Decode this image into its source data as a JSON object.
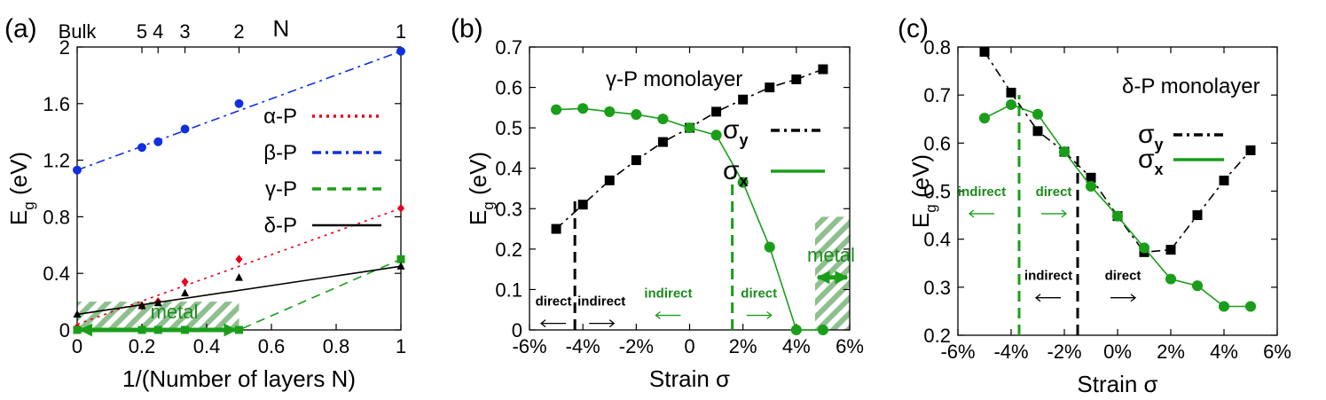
{
  "colors": {
    "alpha": "#e8001c",
    "beta": "#1030e0",
    "gamma": "#1a9e1a",
    "delta": "#000000",
    "metal_hatch": "#2e8b2e"
  },
  "chart_data": [
    {
      "panel": "(a)",
      "type": "scatter",
      "xlabel": "1/(Number of layers N)",
      "ylabel": "E",
      "ylabel_sub": "g",
      "ylabel_unit": " (eV)",
      "top_axis_label": "N",
      "xlim": [
        0,
        1
      ],
      "ylim": [
        0,
        2
      ],
      "x_ticks": [
        0,
        0.2,
        0.4,
        0.6,
        0.8,
        1
      ],
      "x_tick_labels": [
        "0",
        "0.2",
        "0.4",
        "0.6",
        "0.8",
        "1"
      ],
      "y_ticks": [
        0,
        0.4,
        0.8,
        1.2,
        1.6,
        2
      ],
      "y_tick_labels": [
        "0",
        "0.4",
        "0.8",
        "1.2",
        "1.6",
        "2"
      ],
      "top_ticks": [
        0,
        0.2,
        0.25,
        0.333,
        0.5,
        1
      ],
      "top_tick_labels": [
        "Bulk",
        "5",
        "4",
        "3",
        "2",
        "1"
      ],
      "legend_placement": "right",
      "grid": false,
      "series": [
        {
          "name": "α-P",
          "key": "alpha",
          "marker": "diamond",
          "line": "dotted",
          "x": [
            0,
            0.2,
            0.25,
            0.333,
            0.5,
            1
          ],
          "y": [
            0.02,
            0.17,
            0.2,
            0.34,
            0.5,
            0.86
          ],
          "fit": [
            [
              0,
              0.04
            ],
            [
              1,
              0.86
            ]
          ]
        },
        {
          "name": "β-P",
          "key": "beta",
          "marker": "circle",
          "line": "dashdot",
          "x": [
            0,
            0.2,
            0.25,
            0.333,
            0.5,
            1
          ],
          "y": [
            1.13,
            1.29,
            1.33,
            1.42,
            1.6,
            1.97
          ],
          "fit": [
            [
              0,
              1.13
            ],
            [
              1,
              1.97
            ]
          ]
        },
        {
          "name": "γ-P",
          "key": "gamma",
          "marker": "square",
          "line": "dashed",
          "x": [
            0,
            0.2,
            0.25,
            0.333,
            0.5,
            1
          ],
          "y": [
            0,
            0,
            0,
            0,
            0,
            0.5
          ],
          "fit": [
            [
              0,
              0
            ],
            [
              0.5,
              0
            ],
            [
              1,
              0.5
            ]
          ]
        },
        {
          "name": "δ-P",
          "key": "delta",
          "marker": "triangle",
          "line": "solid",
          "x": [
            0,
            0.2,
            0.25,
            0.333,
            0.5,
            1
          ],
          "y": [
            0.11,
            0.17,
            0.19,
            0.26,
            0.37,
            0.45
          ],
          "fit": [
            [
              0,
              0.11
            ],
            [
              1,
              0.45
            ]
          ]
        }
      ],
      "regions": [
        {
          "label": "metal",
          "x": [
            0,
            0.5
          ],
          "y": [
            0,
            0.2
          ]
        }
      ]
    },
    {
      "panel": "(b)",
      "type": "line",
      "title": "γ-P monolayer",
      "xlabel": "Strain σ",
      "ylabel": "E",
      "ylabel_sub": "g",
      "ylabel_unit": " (eV)",
      "xlim": [
        -6,
        6
      ],
      "ylim": [
        0,
        0.7
      ],
      "x_ticks": [
        -6,
        -4,
        -2,
        0,
        2,
        4,
        6
      ],
      "x_tick_labels": [
        "-6%",
        "-4%",
        "-2%",
        "0",
        "2%",
        "4%",
        "6%"
      ],
      "y_ticks": [
        0,
        0.1,
        0.2,
        0.3,
        0.4,
        0.5,
        0.6,
        0.7
      ],
      "y_tick_labels": [
        "0",
        "0.1",
        "0.2",
        "0.3",
        "0.4",
        "0.5",
        "0.6",
        "0.7"
      ],
      "legend_placement": "right",
      "grid": false,
      "series": [
        {
          "name": "σ",
          "sub": "y",
          "key": "delta",
          "marker": "square",
          "line": "dashdot",
          "x": [
            -5,
            -4,
            -3,
            -2,
            -1,
            0,
            1,
            2,
            3,
            4,
            5
          ],
          "y": [
            0.25,
            0.31,
            0.37,
            0.42,
            0.465,
            0.5,
            0.54,
            0.57,
            0.6,
            0.62,
            0.645
          ]
        },
        {
          "name": "σ",
          "sub": "x",
          "key": "gamma",
          "marker": "circle",
          "line": "solid",
          "x": [
            -5,
            -4,
            -3,
            -2,
            -1,
            0,
            1,
            2,
            3,
            4,
            5
          ],
          "y": [
            0.545,
            0.548,
            0.54,
            0.533,
            0.522,
            0.5,
            0.482,
            0.365,
            0.205,
            0,
            0
          ]
        }
      ],
      "vlines": [
        {
          "x": -4.3,
          "y": [
            0,
            0.33
          ],
          "key": "delta"
        },
        {
          "x": 1.6,
          "y": [
            0,
            0.38
          ],
          "key": "gamma"
        }
      ],
      "annotations": [
        {
          "text": "direct",
          "color": "black",
          "x": -5.1,
          "y": 0.06
        },
        {
          "text": "indirect",
          "color": "black",
          "x": -3.3,
          "y": 0.06
        },
        {
          "text": "indirect",
          "color": "green",
          "x": -0.8,
          "y": 0.08
        },
        {
          "text": "direct",
          "color": "green",
          "x": 2.6,
          "y": 0.08
        },
        {
          "text": "metal",
          "color": "green",
          "x": 5.3,
          "y": 0.13,
          "big": true
        }
      ],
      "regions": [
        {
          "label": "metal",
          "x": [
            4.7,
            6
          ],
          "y": [
            0,
            0.28
          ]
        }
      ]
    },
    {
      "panel": "(c)",
      "type": "line",
      "title": "δ-P monolayer",
      "xlabel": "Strain σ",
      "ylabel": "E",
      "ylabel_sub": "g",
      "ylabel_unit": " (eV)",
      "xlim": [
        -6,
        6
      ],
      "ylim": [
        0.2,
        0.8
      ],
      "x_ticks": [
        -6,
        -4,
        -2,
        0,
        2,
        4,
        6
      ],
      "x_tick_labels": [
        "-6%",
        "-4%",
        "-2%",
        "0%",
        "2%",
        "4%",
        "6%"
      ],
      "y_ticks": [
        0.2,
        0.3,
        0.4,
        0.5,
        0.6,
        0.7,
        0.8
      ],
      "y_tick_labels": [
        "0.2",
        "0.3",
        "0.4",
        "0.5",
        "0.6",
        "0.7",
        "0.8"
      ],
      "legend_placement": "right",
      "grid": false,
      "series": [
        {
          "name": "σ",
          "sub": "y",
          "key": "delta",
          "marker": "square",
          "line": "dashdot",
          "x": [
            -5,
            -4,
            -3,
            -2,
            -1,
            0,
            1,
            2,
            3,
            4,
            5
          ],
          "y": [
            0.79,
            0.705,
            0.625,
            0.582,
            0.528,
            0.448,
            0.373,
            0.378,
            0.45,
            0.522,
            0.585
          ]
        },
        {
          "name": "σ",
          "sub": "x",
          "key": "gamma",
          "marker": "circle",
          "line": "solid",
          "x": [
            -5,
            -4,
            -3,
            -2,
            -1,
            0,
            1,
            2,
            3,
            4,
            5
          ],
          "y": [
            0.652,
            0.68,
            0.66,
            0.582,
            0.51,
            0.448,
            0.382,
            0.317,
            0.303,
            0.26,
            0.26
          ]
        }
      ],
      "vlines": [
        {
          "x": -3.7,
          "y": [
            0.2,
            0.7
          ],
          "key": "gamma"
        },
        {
          "x": -1.5,
          "y": [
            0.2,
            0.58
          ],
          "key": "delta"
        }
      ],
      "annotations": [
        {
          "text": "indirect",
          "color": "green",
          "x": -5.1,
          "y": 0.49
        },
        {
          "text": "direct",
          "color": "green",
          "x": -2.4,
          "y": 0.49
        },
        {
          "text": "indirect",
          "color": "black",
          "x": -2.6,
          "y": 0.315
        },
        {
          "text": "direct",
          "color": "black",
          "x": 0.2,
          "y": 0.315
        }
      ]
    }
  ]
}
